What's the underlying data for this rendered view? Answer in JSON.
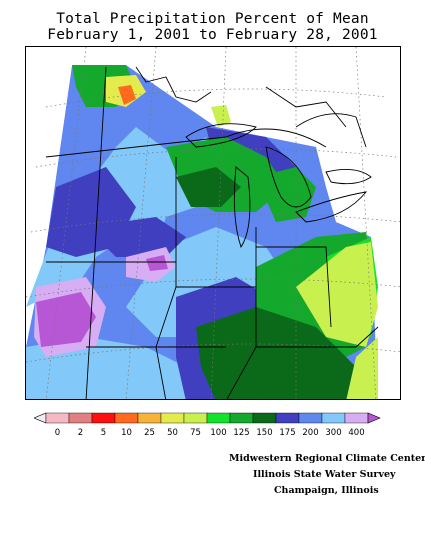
{
  "title": {
    "line1": "Total Precipitation Percent of Mean",
    "line2": "February 1, 2001 to February 28, 2001"
  },
  "legend": {
    "labels": [
      "0",
      "2",
      "5",
      "10",
      "25",
      "50",
      "75",
      "100",
      "125",
      "150",
      "175",
      "200",
      "300",
      "400"
    ],
    "colors": [
      "#f4b9c3",
      "#e08080",
      "#ff1010",
      "#ff6a1c",
      "#f7b33a",
      "#e4ec4d",
      "#c8f04e",
      "#12e32a",
      "#14a82c",
      "#0a6a19",
      "#3f3fbf",
      "#5f87ef",
      "#82c8f8",
      "#d7adf3",
      "#b857d6"
    ]
  },
  "credits": {
    "line1": "Midwestern Regional Climate Center",
    "line2": "Illinois State Water Survey",
    "line3": "Champaign, Illinois"
  },
  "colors": {
    "pct_150_175": "#3f3fbf",
    "pct_175_200": "#5f87ef",
    "pct_200_300": "#82c8f8",
    "pct_300_400": "#d7adf3",
    "pct_400_plus": "#b857d6",
    "pct_125_150": "#0a6a19",
    "pct_100_125": "#14a82c",
    "pct_75_100": "#12e32a",
    "pct_50_75": "#c8f04e"
  }
}
